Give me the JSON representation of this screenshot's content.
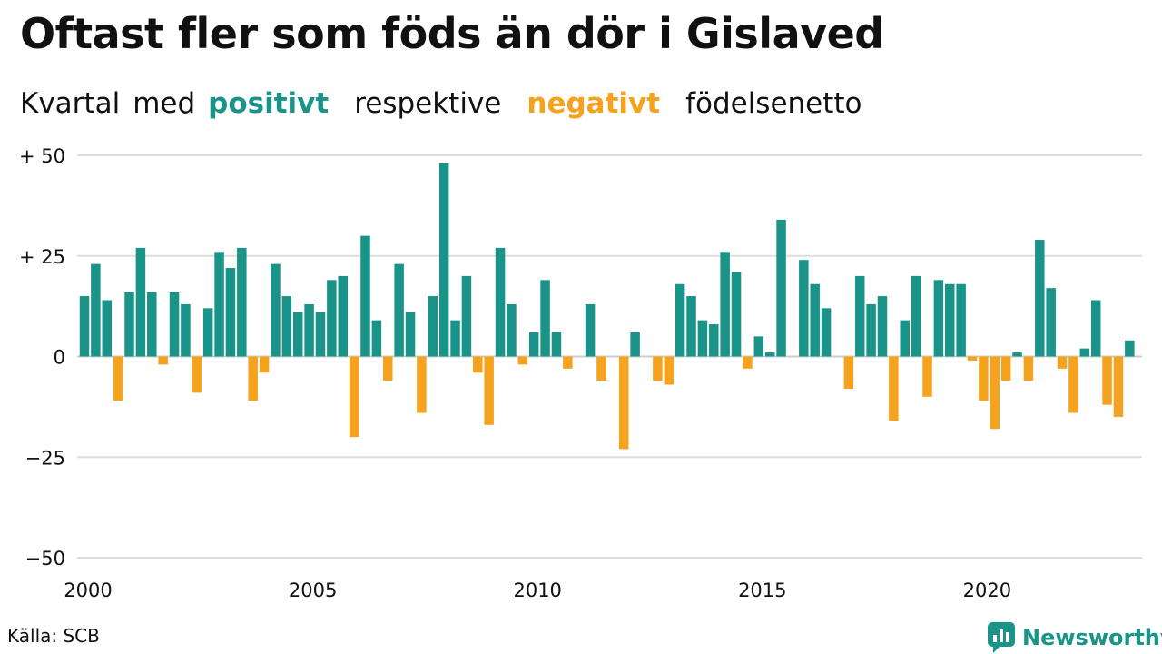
{
  "title": "Oftast fler som föds än dör i Gislaved",
  "subtitle": {
    "w1": "Kvartal",
    "w2": "med",
    "w3": "positivt",
    "w4": "respektive",
    "w5": "negativt",
    "w6": "födelsenetto"
  },
  "source": "Källa: SCB",
  "brand": "Newsworthy",
  "colors": {
    "positive": "#1a9489",
    "negative": "#f5a21e",
    "grid": "#dddddd"
  },
  "chart_data": {
    "type": "bar",
    "xlabel": "",
    "ylabel": "",
    "ylim": [
      -50,
      50
    ],
    "yticks": [
      {
        "value": 50,
        "label": "+ 50"
      },
      {
        "value": 25,
        "label": "+ 25"
      },
      {
        "value": 0,
        "label": "0"
      },
      {
        "value": -25,
        "label": "−25"
      },
      {
        "value": -50,
        "label": "−50"
      }
    ],
    "xticks": [
      {
        "year": 2000,
        "label": "2000"
      },
      {
        "year": 2005,
        "label": "2005"
      },
      {
        "year": 2010,
        "label": "2010"
      },
      {
        "year": 2015,
        "label": "2015"
      },
      {
        "year": 2020,
        "label": "2020"
      }
    ],
    "grid": true,
    "start": "2000 Q1",
    "frequency": "quarterly",
    "values": [
      15,
      23,
      14,
      -11,
      16,
      27,
      16,
      -2,
      16,
      13,
      -9,
      12,
      26,
      22,
      27,
      -11,
      -4,
      23,
      15,
      11,
      13,
      11,
      19,
      20,
      -20,
      30,
      9,
      -6,
      23,
      11,
      -14,
      15,
      48,
      9,
      20,
      -4,
      -17,
      27,
      13,
      -2,
      6,
      19,
      6,
      -3,
      0,
      13,
      -6,
      0,
      -23,
      6,
      0,
      -6,
      -7,
      18,
      15,
      9,
      8,
      26,
      21,
      -3,
      5,
      1,
      34,
      0,
      24,
      18,
      12,
      0,
      -8,
      20,
      13,
      15,
      -16,
      9,
      20,
      -10,
      19,
      18,
      18,
      -1,
      -11,
      -18,
      -6,
      1,
      -6,
      29,
      17,
      -3,
      -14,
      2,
      14,
      -12,
      -15,
      4
    ]
  }
}
